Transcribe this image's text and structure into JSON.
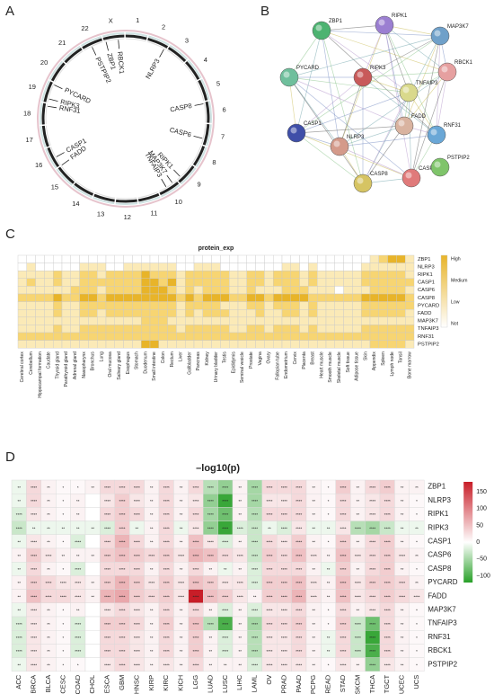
{
  "panels": {
    "a": "A",
    "b": "B",
    "c": "C",
    "d": "D"
  },
  "circos": {
    "chromosomes": [
      "1",
      "2",
      "3",
      "4",
      "5",
      "6",
      "7",
      "8",
      "9",
      "10",
      "11",
      "12",
      "13",
      "14",
      "15",
      "16",
      "17",
      "18",
      "19",
      "20",
      "21",
      "22",
      "X"
    ],
    "genes": [
      "ZBP1",
      "RBCK1",
      "PSTPIP2",
      "NLRP3",
      "CASP8",
      "PYCARD",
      "RIPK3",
      "RNF31",
      "CASP6",
      "CASP1",
      "FADD",
      "RIPK1",
      "MAP3K7",
      "TNFAIP3"
    ]
  },
  "network": {
    "nodes": [
      "ZBP1",
      "RIPK1",
      "MAP3K7",
      "PYCARD",
      "RIPK3",
      "RBCK1",
      "TNFAIP3",
      "CASP1",
      "FADD",
      "RNF31",
      "NLRP3",
      "CASP8",
      "CASP6",
      "PSTPIP2"
    ],
    "colors": [
      "#4db371",
      "#9b7fd1",
      "#6fa0c9",
      "#6fbf9c",
      "#c85a5a",
      "#e6a0a0",
      "#d9d98c",
      "#3f4fa8",
      "#d9b3a0",
      "#6aa7d6",
      "#d49a8a",
      "#d6c463",
      "#e07a7a",
      "#7fc46a"
    ]
  },
  "heatmap_c": {
    "title": "protein_exp",
    "legend": [
      "High",
      "Medium",
      "Low",
      "Not"
    ],
    "rows": [
      "ZBP1",
      "NLRP3",
      "RIPK1",
      "CASP1",
      "CASP6",
      "CASP8",
      "PYCARD",
      "FADD",
      "MAP3K7",
      "TNFAIP3",
      "RNF31",
      "PSTPIP2"
    ],
    "cols": [
      "Cerebral cortex",
      "Cerebellum",
      "Hippocampal formation",
      "Caudate",
      "Thyroid gland",
      "Parathyroid gland",
      "Adrenal gland",
      "Nasopharynx",
      "Bronchus",
      "Lung",
      "Oral mucosa",
      "Salivary gland",
      "Esophagus",
      "Stomach",
      "Duodenum",
      "Small intestine",
      "Colon",
      "Rectum",
      "Liver",
      "Gallbladder",
      "Pancreas",
      "Kidney",
      "Urinary bladder",
      "Testis",
      "Epididymis",
      "Seminal vesicle",
      "Prostate",
      "Vagina",
      "Ovary",
      "Fallopian tube",
      "Endometrium",
      "Cervix",
      "Placenta",
      "Breast",
      "Heart muscle",
      "Smooth muscle",
      "Skeletal muscle",
      "Soft tissue",
      "Adipose tissue",
      "Skin",
      "Appendix",
      "Spleen",
      "Lymph node",
      "Tonsil",
      "Bone marrow"
    ]
  },
  "heatmap_d": {
    "title": "–log10(p)",
    "rows": [
      "ZBP1",
      "NLRP3",
      "RIPK1",
      "RIPK3",
      "CASP1",
      "CASP6",
      "CASP8",
      "PYCARD",
      "FADD",
      "MAP3K7",
      "TNFAIP3",
      "RNF31",
      "RBCK1",
      "PSTPIP2"
    ],
    "cols": [
      "ACC",
      "BRCA",
      "BLCA",
      "CESC",
      "COAD",
      "CHOL",
      "ESCA",
      "GBM",
      "HNSC",
      "KIRP",
      "KIRC",
      "KICH",
      "LGG",
      "LUAD",
      "LUSC",
      "LIHC",
      "LAML",
      "OV",
      "PRAD",
      "PAAD",
      "PCPG",
      "READ",
      "STAD",
      "SKCM",
      "THCA",
      "TGCT",
      "UCEC",
      "UCS"
    ],
    "legend_ticks": [
      "150",
      "100",
      "50",
      "0",
      "−50",
      "−100"
    ]
  },
  "chart_data": [
    {
      "type": "heatmap",
      "title": "protein_exp",
      "rows": [
        "ZBP1",
        "NLRP3",
        "RIPK1",
        "CASP1",
        "CASP6",
        "CASP8",
        "PYCARD",
        "FADD",
        "MAP3K7",
        "TNFAIP3",
        "RNF31",
        "PSTPIP2"
      ],
      "cols": [
        "Cerebral cortex",
        "Cerebellum",
        "Hippocampal formation",
        "Caudate",
        "Thyroid gland",
        "Parathyroid gland",
        "Adrenal gland",
        "Nasopharynx",
        "Bronchus",
        "Lung",
        "Oral mucosa",
        "Salivary gland",
        "Esophagus",
        "Stomach",
        "Duodenum",
        "Small intestine",
        "Colon",
        "Rectum",
        "Liver",
        "Gallbladder",
        "Pancreas",
        "Kidney",
        "Urinary bladder",
        "Testis",
        "Epididymis",
        "Seminal vesicle",
        "Prostate",
        "Vagina",
        "Ovary",
        "Fallopian tube",
        "Endometrium",
        "Cervix",
        "Placenta",
        "Breast",
        "Heart muscle",
        "Smooth muscle",
        "Skeletal muscle",
        "Soft tissue",
        "Adipose tissue",
        "Skin",
        "Appendix",
        "Spleen",
        "Lymph node",
        "Tonsil",
        "Bone marrow"
      ],
      "levels": [
        "Not",
        "Low",
        "Medium",
        "High"
      ],
      "values": [
        [
          0,
          0,
          0,
          0,
          0,
          0,
          0,
          0,
          0,
          0,
          0,
          0,
          0,
          0,
          0,
          0,
          0,
          0,
          0,
          0,
          0,
          0,
          0,
          0,
          0,
          0,
          0,
          0,
          0,
          0,
          0,
          0,
          0,
          0,
          0,
          0,
          0,
          0,
          0,
          0,
          1,
          2,
          3,
          3,
          1
        ],
        [
          0,
          1,
          0,
          0,
          0,
          0,
          0,
          1,
          1,
          1,
          0,
          0,
          1,
          1,
          1,
          1,
          1,
          1,
          0,
          0,
          1,
          1,
          1,
          0,
          0,
          0,
          0,
          0,
          0,
          0,
          1,
          1,
          0,
          1,
          0,
          0,
          0,
          0,
          0,
          1,
          1,
          1,
          1,
          1,
          1
        ],
        [
          1,
          1,
          1,
          1,
          2,
          1,
          1,
          2,
          2,
          1,
          2,
          2,
          2,
          2,
          3,
          2,
          2,
          2,
          1,
          2,
          2,
          2,
          2,
          2,
          1,
          1,
          2,
          2,
          1,
          2,
          2,
          2,
          1,
          2,
          1,
          1,
          1,
          1,
          1,
          2,
          2,
          2,
          2,
          2,
          1
        ],
        [
          1,
          2,
          1,
          1,
          2,
          1,
          1,
          2,
          2,
          2,
          2,
          2,
          2,
          2,
          3,
          3,
          2,
          3,
          1,
          2,
          2,
          2,
          2,
          2,
          1,
          1,
          2,
          2,
          1,
          2,
          2,
          2,
          1,
          2,
          1,
          1,
          1,
          1,
          1,
          2,
          2,
          2,
          2,
          2,
          2
        ],
        [
          1,
          1,
          1,
          1,
          1,
          1,
          2,
          2,
          2,
          1,
          2,
          2,
          2,
          2,
          3,
          3,
          3,
          2,
          1,
          2,
          1,
          2,
          2,
          2,
          1,
          1,
          2,
          1,
          1,
          1,
          2,
          2,
          2,
          1,
          1,
          1,
          0,
          1,
          1,
          1,
          2,
          2,
          2,
          2,
          1
        ],
        [
          2,
          2,
          2,
          2,
          3,
          2,
          2,
          3,
          3,
          2,
          3,
          3,
          3,
          3,
          3,
          3,
          3,
          3,
          2,
          3,
          2,
          3,
          3,
          3,
          2,
          2,
          3,
          3,
          2,
          3,
          3,
          3,
          3,
          2,
          2,
          2,
          2,
          2,
          2,
          3,
          3,
          3,
          3,
          3,
          2
        ],
        [
          1,
          1,
          1,
          1,
          2,
          1,
          1,
          2,
          2,
          2,
          2,
          2,
          2,
          2,
          2,
          2,
          2,
          2,
          1,
          2,
          2,
          2,
          2,
          1,
          1,
          1,
          2,
          2,
          1,
          2,
          2,
          2,
          1,
          2,
          1,
          1,
          1,
          1,
          1,
          2,
          2,
          2,
          2,
          2,
          2
        ],
        [
          1,
          1,
          1,
          1,
          2,
          1,
          1,
          2,
          2,
          1,
          2,
          2,
          2,
          2,
          2,
          2,
          2,
          2,
          1,
          2,
          1,
          2,
          2,
          2,
          1,
          1,
          1,
          2,
          1,
          1,
          2,
          2,
          1,
          2,
          1,
          1,
          1,
          1,
          1,
          2,
          2,
          2,
          2,
          2,
          1
        ],
        [
          1,
          1,
          1,
          1,
          1,
          1,
          1,
          1,
          1,
          1,
          1,
          1,
          1,
          1,
          2,
          2,
          2,
          1,
          1,
          1,
          1,
          1,
          1,
          1,
          1,
          1,
          1,
          1,
          1,
          1,
          1,
          1,
          1,
          1,
          1,
          1,
          1,
          1,
          1,
          1,
          1,
          1,
          1,
          1,
          1
        ],
        [
          1,
          1,
          1,
          1,
          2,
          1,
          1,
          2,
          2,
          2,
          2,
          2,
          2,
          2,
          2,
          2,
          2,
          2,
          1,
          2,
          2,
          2,
          2,
          2,
          1,
          1,
          2,
          2,
          1,
          2,
          2,
          2,
          1,
          2,
          1,
          1,
          1,
          1,
          1,
          2,
          2,
          2,
          2,
          2,
          2
        ],
        [
          2,
          2,
          2,
          2,
          2,
          2,
          2,
          2,
          2,
          2,
          2,
          2,
          2,
          2,
          2,
          2,
          2,
          2,
          2,
          2,
          2,
          2,
          2,
          2,
          2,
          2,
          2,
          2,
          2,
          2,
          2,
          2,
          2,
          2,
          2,
          2,
          2,
          2,
          2,
          2,
          2,
          2,
          2,
          2,
          2
        ],
        [
          1,
          1,
          1,
          1,
          1,
          1,
          1,
          1,
          1,
          1,
          1,
          1,
          1,
          1,
          3,
          3,
          1,
          1,
          1,
          1,
          1,
          1,
          1,
          1,
          1,
          1,
          1,
          1,
          1,
          1,
          1,
          1,
          1,
          1,
          1,
          1,
          1,
          1,
          1,
          1,
          2,
          2,
          2,
          2,
          1
        ]
      ]
    },
    {
      "type": "heatmap",
      "title": "–log10(p)",
      "rows": [
        "ZBP1",
        "NLRP3",
        "RIPK1",
        "RIPK3",
        "CASP1",
        "CASP6",
        "CASP8",
        "PYCARD",
        "FADD",
        "MAP3K7",
        "TNFAIP3",
        "RNF31",
        "RBCK1",
        "PSTPIP2"
      ],
      "cols": [
        "ACC",
        "BRCA",
        "BLCA",
        "CESC",
        "COAD",
        "CHOL",
        "ESCA",
        "GBM",
        "HNSC",
        "KIRP",
        "KIRC",
        "KICH",
        "LGG",
        "LUAD",
        "LUSC",
        "LIHC",
        "LAML",
        "OV",
        "PRAD",
        "PAAD",
        "PCPG",
        "READ",
        "STAD",
        "SKCM",
        "THCA",
        "TGCT",
        "UCEC",
        "UCS"
      ],
      "zlim": [
        -120,
        180
      ],
      "values": [
        [
          -10,
          30,
          10,
          5,
          5,
          10,
          30,
          30,
          30,
          10,
          30,
          10,
          30,
          -40,
          -60,
          10,
          -50,
          30,
          30,
          30,
          10,
          5,
          40,
          10,
          30,
          40,
          10,
          10
        ],
        [
          -10,
          30,
          10,
          5,
          10,
          0,
          20,
          40,
          20,
          10,
          30,
          10,
          20,
          -60,
          -110,
          10,
          -50,
          20,
          20,
          30,
          10,
          5,
          30,
          10,
          20,
          30,
          10,
          5
        ],
        [
          -20,
          20,
          10,
          5,
          10,
          0,
          30,
          40,
          30,
          10,
          30,
          10,
          30,
          -50,
          -80,
          10,
          -40,
          30,
          30,
          30,
          10,
          5,
          30,
          10,
          20,
          30,
          10,
          5
        ],
        [
          -30,
          -10,
          -10,
          -10,
          -10,
          -10,
          -20,
          40,
          -10,
          10,
          30,
          -10,
          20,
          -60,
          -110,
          -20,
          -30,
          -10,
          -20,
          20,
          -10,
          -10,
          20,
          -40,
          -50,
          -30,
          -10,
          -10
        ],
        [
          -10,
          20,
          10,
          5,
          -20,
          0,
          30,
          60,
          30,
          10,
          30,
          10,
          50,
          20,
          -20,
          10,
          -30,
          30,
          20,
          40,
          10,
          5,
          40,
          10,
          30,
          40,
          10,
          5
        ],
        [
          10,
          40,
          20,
          10,
          10,
          10,
          40,
          50,
          40,
          30,
          40,
          20,
          60,
          50,
          30,
          20,
          -30,
          40,
          30,
          50,
          20,
          10,
          50,
          20,
          30,
          40,
          20,
          10
        ],
        [
          -10,
          30,
          10,
          5,
          -20,
          0,
          30,
          30,
          30,
          10,
          30,
          10,
          30,
          10,
          -10,
          10,
          -20,
          30,
          30,
          30,
          10,
          -10,
          40,
          10,
          30,
          40,
          10,
          5
        ],
        [
          10,
          40,
          30,
          20,
          20,
          10,
          40,
          60,
          40,
          20,
          40,
          20,
          50,
          40,
          20,
          20,
          -20,
          40,
          40,
          50,
          20,
          10,
          50,
          20,
          40,
          40,
          30,
          10
        ],
        [
          10,
          50,
          30,
          30,
          20,
          10,
          60,
          70,
          40,
          30,
          40,
          20,
          180,
          50,
          40,
          20,
          10,
          40,
          40,
          60,
          20,
          10,
          50,
          20,
          30,
          40,
          30,
          20
        ],
        [
          -10,
          20,
          10,
          5,
          10,
          0,
          20,
          30,
          20,
          10,
          30,
          10,
          30,
          10,
          -20,
          10,
          -20,
          20,
          20,
          30,
          10,
          5,
          30,
          10,
          20,
          30,
          10,
          5
        ],
        [
          -20,
          20,
          10,
          5,
          -20,
          0,
          40,
          40,
          30,
          10,
          40,
          10,
          50,
          -40,
          -100,
          10,
          -50,
          30,
          30,
          40,
          10,
          5,
          40,
          -30,
          -80,
          30,
          10,
          5
        ],
        [
          -20,
          20,
          10,
          5,
          -20,
          0,
          30,
          30,
          20,
          10,
          30,
          10,
          40,
          10,
          -20,
          10,
          -40,
          20,
          20,
          30,
          10,
          -10,
          30,
          -30,
          -110,
          30,
          10,
          5
        ],
        [
          -20,
          20,
          10,
          5,
          -20,
          0,
          30,
          30,
          20,
          10,
          30,
          10,
          40,
          10,
          -20,
          10,
          -40,
          20,
          20,
          30,
          10,
          -10,
          30,
          -30,
          -100,
          30,
          10,
          5
        ],
        [
          -10,
          20,
          10,
          5,
          5,
          0,
          20,
          30,
          20,
          10,
          20,
          10,
          30,
          10,
          10,
          10,
          -20,
          20,
          20,
          20,
          10,
          5,
          20,
          10,
          -60,
          20,
          10,
          5
        ]
      ]
    }
  ]
}
